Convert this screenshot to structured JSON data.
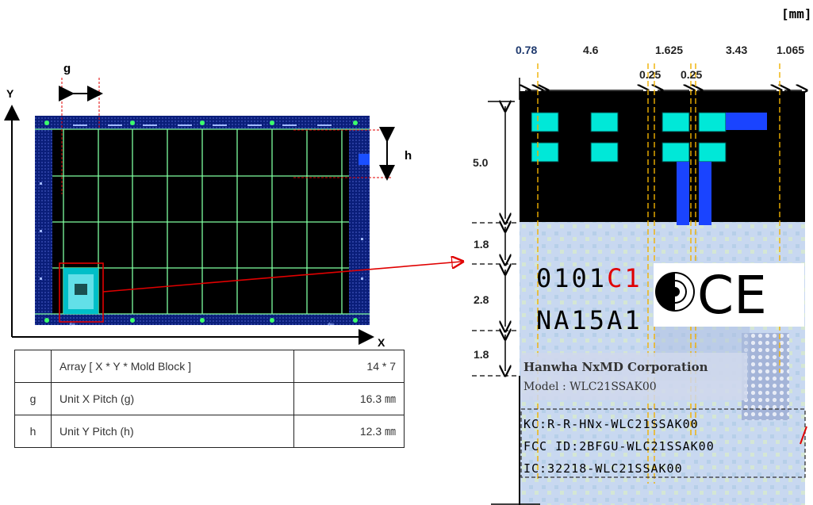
{
  "unit_label": "[mm]",
  "axes": {
    "y": "Y",
    "x": "X"
  },
  "pitch_labels": {
    "g": "g",
    "h": "h"
  },
  "spec_table": [
    {
      "sym": "",
      "name": "Array [ X * Y * Mold Block ]",
      "value": "14 * 7"
    },
    {
      "sym": "g",
      "name": "Unit X Pitch (g)",
      "value": "16.3 ㎜"
    },
    {
      "sym": "h",
      "name": "Unit Y Pitch (h)",
      "value": "12.3 ㎜"
    }
  ],
  "top_dims": [
    "0.78",
    "4.6",
    "1.625",
    "3.43",
    "1.065"
  ],
  "sub_dims": [
    "0.25",
    "0.25"
  ],
  "left_dims": [
    "5.0",
    "1.8",
    "2.8",
    "1.8"
  ],
  "label_text": {
    "code1": "0101",
    "code1_red": "C1",
    "code2": "NA15A1",
    "company": "Hanwha NxMD Corporation",
    "model": "Model : WLC21SSAK00",
    "kc": "KC:R-R-HNx-WLC21SSAK00",
    "fcc": "FCC ID:2BFGU-WLC21SSAK00",
    "ic": "IC:32218-WLC21SSAK00"
  },
  "colors": {
    "pad": "#00e0d0",
    "board": "#000000",
    "frame": "#0a1e7a",
    "grid": "#7fffa0",
    "red": "#e00000",
    "guide": "#f0b000"
  }
}
